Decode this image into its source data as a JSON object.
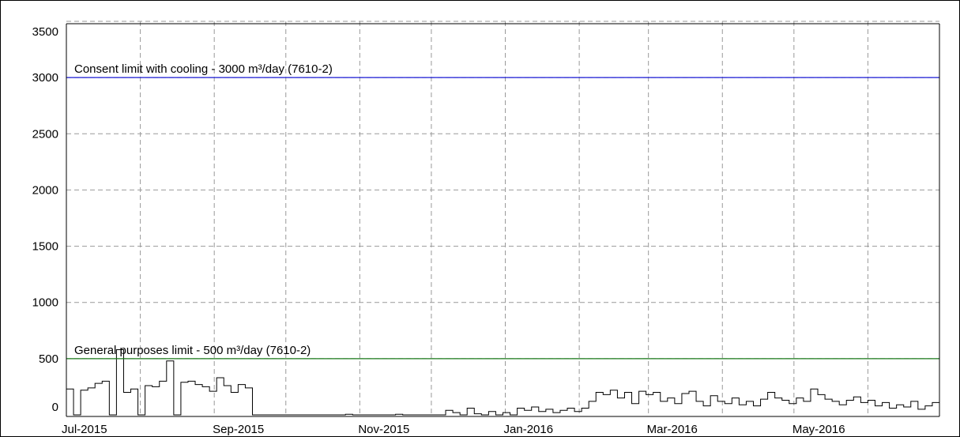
{
  "chart_data": {
    "type": "step",
    "xlim": [
      "2015-07-01",
      "2016-07-01"
    ],
    "xticks": [
      {
        "value": "2015-07-01",
        "label": "Jul-2015"
      },
      {
        "value": "2015-08-01",
        "label": null
      },
      {
        "value": "2015-09-01",
        "label": "Sep-2015"
      },
      {
        "value": "2015-10-01",
        "label": null
      },
      {
        "value": "2015-11-01",
        "label": "Nov-2015"
      },
      {
        "value": "2015-12-01",
        "label": null
      },
      {
        "value": "2016-01-01",
        "label": "Jan-2016"
      },
      {
        "value": "2016-02-01",
        "label": null
      },
      {
        "value": "2016-03-01",
        "label": "Mar-2016"
      },
      {
        "value": "2016-04-01",
        "label": null
      },
      {
        "value": "2016-05-01",
        "label": "May-2016"
      },
      {
        "value": "2016-06-01",
        "label": null
      }
    ],
    "ylim": [
      0,
      3500
    ],
    "yticks": [
      0,
      500,
      1000,
      1500,
      2000,
      2500,
      3000,
      3500
    ],
    "grid": true,
    "color": "#000000",
    "values": [
      230,
      0,
      220,
      240,
      280,
      300,
      0,
      580,
      200,
      230,
      0,
      260,
      250,
      300,
      480,
      0,
      290,
      300,
      270,
      250,
      210,
      330,
      260,
      200,
      270,
      240,
      0,
      0,
      0,
      0,
      0,
      0,
      0,
      0,
      0,
      0,
      0,
      0,
      0,
      5,
      0,
      0,
      0,
      0,
      0,
      0,
      5,
      0,
      0,
      0,
      0,
      0,
      0,
      40,
      20,
      0,
      60,
      10,
      0,
      30,
      0,
      20,
      0,
      60,
      40,
      70,
      30,
      50,
      20,
      40,
      60,
      30,
      60,
      120,
      200,
      180,
      220,
      150,
      200,
      100,
      210,
      180,
      200,
      120,
      150,
      100,
      190,
      210,
      120,
      80,
      170,
      120,
      100,
      150,
      90,
      120,
      80,
      140,
      200,
      150,
      130,
      100,
      150,
      120,
      230,
      180,
      140,
      120,
      90,
      130,
      160,
      110,
      130,
      80,
      110,
      60,
      90,
      70,
      120,
      50,
      80,
      110
    ],
    "limits": [
      {
        "value": 3000,
        "label": "Consent limit with cooling - 3000 m³/day (7610-2)",
        "color": "#1a1ad6"
      },
      {
        "value": 500,
        "label": "General purposes limit - 500 m³/day (7610-2)",
        "color": "#1a7a1a"
      }
    ]
  }
}
